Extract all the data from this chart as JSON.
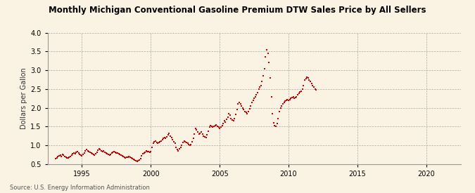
{
  "title": "Monthly Michigan Conventional Gasoline Premium DTW Sales Price by All Sellers",
  "ylabel": "Dollars per Gallon",
  "source": "Source: U.S. Energy Information Administration",
  "background_color": "#FAF3E3",
  "dot_color": "#CC0000",
  "ylim": [
    0.5,
    4.0
  ],
  "yticks": [
    0.5,
    1.0,
    1.5,
    2.0,
    2.5,
    3.0,
    3.5,
    4.0
  ],
  "xlim_start": 1992.5,
  "xlim_end": 2022.5,
  "xticks": [
    1995,
    2000,
    2005,
    2010,
    2015,
    2020
  ],
  "data": [
    [
      1993.08,
      0.65
    ],
    [
      1993.17,
      0.67
    ],
    [
      1993.25,
      0.7
    ],
    [
      1993.33,
      0.72
    ],
    [
      1993.42,
      0.73
    ],
    [
      1993.5,
      0.71
    ],
    [
      1993.58,
      0.75
    ],
    [
      1993.67,
      0.74
    ],
    [
      1993.75,
      0.71
    ],
    [
      1993.83,
      0.68
    ],
    [
      1993.92,
      0.67
    ],
    [
      1994.0,
      0.66
    ],
    [
      1994.08,
      0.68
    ],
    [
      1994.17,
      0.7
    ],
    [
      1994.25,
      0.73
    ],
    [
      1994.33,
      0.78
    ],
    [
      1994.42,
      0.8
    ],
    [
      1994.5,
      0.78
    ],
    [
      1994.58,
      0.82
    ],
    [
      1994.67,
      0.83
    ],
    [
      1994.75,
      0.79
    ],
    [
      1994.83,
      0.76
    ],
    [
      1994.92,
      0.73
    ],
    [
      1995.0,
      0.72
    ],
    [
      1995.08,
      0.75
    ],
    [
      1995.17,
      0.8
    ],
    [
      1995.25,
      0.85
    ],
    [
      1995.33,
      0.88
    ],
    [
      1995.42,
      0.86
    ],
    [
      1995.5,
      0.83
    ],
    [
      1995.58,
      0.82
    ],
    [
      1995.67,
      0.8
    ],
    [
      1995.75,
      0.78
    ],
    [
      1995.83,
      0.76
    ],
    [
      1995.92,
      0.74
    ],
    [
      1996.0,
      0.77
    ],
    [
      1996.08,
      0.82
    ],
    [
      1996.17,
      0.87
    ],
    [
      1996.25,
      0.9
    ],
    [
      1996.33,
      0.88
    ],
    [
      1996.42,
      0.85
    ],
    [
      1996.5,
      0.84
    ],
    [
      1996.58,
      0.85
    ],
    [
      1996.67,
      0.82
    ],
    [
      1996.75,
      0.79
    ],
    [
      1996.83,
      0.77
    ],
    [
      1996.92,
      0.76
    ],
    [
      1997.0,
      0.74
    ],
    [
      1997.08,
      0.76
    ],
    [
      1997.17,
      0.79
    ],
    [
      1997.25,
      0.82
    ],
    [
      1997.33,
      0.84
    ],
    [
      1997.42,
      0.82
    ],
    [
      1997.5,
      0.8
    ],
    [
      1997.58,
      0.79
    ],
    [
      1997.67,
      0.78
    ],
    [
      1997.75,
      0.76
    ],
    [
      1997.83,
      0.74
    ],
    [
      1997.92,
      0.72
    ],
    [
      1998.0,
      0.7
    ],
    [
      1998.08,
      0.68
    ],
    [
      1998.17,
      0.67
    ],
    [
      1998.25,
      0.68
    ],
    [
      1998.33,
      0.69
    ],
    [
      1998.42,
      0.7
    ],
    [
      1998.5,
      0.68
    ],
    [
      1998.58,
      0.67
    ],
    [
      1998.67,
      0.65
    ],
    [
      1998.75,
      0.62
    ],
    [
      1998.83,
      0.6
    ],
    [
      1998.92,
      0.58
    ],
    [
      1999.0,
      0.57
    ],
    [
      1999.08,
      0.58
    ],
    [
      1999.17,
      0.6
    ],
    [
      1999.25,
      0.65
    ],
    [
      1999.33,
      0.72
    ],
    [
      1999.42,
      0.78
    ],
    [
      1999.5,
      0.8
    ],
    [
      1999.58,
      0.82
    ],
    [
      1999.67,
      0.85
    ],
    [
      1999.75,
      0.84
    ],
    [
      1999.83,
      0.83
    ],
    [
      1999.92,
      0.82
    ],
    [
      2000.0,
      0.84
    ],
    [
      2000.08,
      0.95
    ],
    [
      2000.17,
      1.05
    ],
    [
      2000.25,
      1.1
    ],
    [
      2000.33,
      1.12
    ],
    [
      2000.42,
      1.08
    ],
    [
      2000.5,
      1.05
    ],
    [
      2000.58,
      1.08
    ],
    [
      2000.67,
      1.1
    ],
    [
      2000.75,
      1.12
    ],
    [
      2000.83,
      1.15
    ],
    [
      2000.92,
      1.18
    ],
    [
      2001.0,
      1.2
    ],
    [
      2001.08,
      1.18
    ],
    [
      2001.17,
      1.22
    ],
    [
      2001.25,
      1.28
    ],
    [
      2001.33,
      1.32
    ],
    [
      2001.42,
      1.25
    ],
    [
      2001.5,
      1.2
    ],
    [
      2001.58,
      1.15
    ],
    [
      2001.67,
      1.1
    ],
    [
      2001.75,
      1.05
    ],
    [
      2001.83,
      0.95
    ],
    [
      2001.92,
      0.88
    ],
    [
      2002.0,
      0.85
    ],
    [
      2002.08,
      0.9
    ],
    [
      2002.17,
      0.95
    ],
    [
      2002.25,
      1.0
    ],
    [
      2002.33,
      1.08
    ],
    [
      2002.42,
      1.12
    ],
    [
      2002.5,
      1.1
    ],
    [
      2002.58,
      1.08
    ],
    [
      2002.67,
      1.05
    ],
    [
      2002.75,
      1.02
    ],
    [
      2002.83,
      1.0
    ],
    [
      2002.92,
      1.02
    ],
    [
      2003.0,
      1.1
    ],
    [
      2003.08,
      1.18
    ],
    [
      2003.17,
      1.3
    ],
    [
      2003.25,
      1.45
    ],
    [
      2003.33,
      1.42
    ],
    [
      2003.42,
      1.35
    ],
    [
      2003.5,
      1.3
    ],
    [
      2003.58,
      1.32
    ],
    [
      2003.67,
      1.35
    ],
    [
      2003.75,
      1.3
    ],
    [
      2003.83,
      1.25
    ],
    [
      2003.92,
      1.22
    ],
    [
      2004.0,
      1.2
    ],
    [
      2004.08,
      1.28
    ],
    [
      2004.17,
      1.38
    ],
    [
      2004.25,
      1.48
    ],
    [
      2004.33,
      1.52
    ],
    [
      2004.42,
      1.5
    ],
    [
      2004.5,
      1.48
    ],
    [
      2004.58,
      1.5
    ],
    [
      2004.67,
      1.52
    ],
    [
      2004.75,
      1.55
    ],
    [
      2004.83,
      1.5
    ],
    [
      2004.92,
      1.48
    ],
    [
      2005.0,
      1.45
    ],
    [
      2005.08,
      1.48
    ],
    [
      2005.17,
      1.52
    ],
    [
      2005.25,
      1.58
    ],
    [
      2005.33,
      1.65
    ],
    [
      2005.42,
      1.62
    ],
    [
      2005.5,
      1.7
    ],
    [
      2005.58,
      1.75
    ],
    [
      2005.67,
      1.85
    ],
    [
      2005.75,
      1.8
    ],
    [
      2005.83,
      1.72
    ],
    [
      2005.92,
      1.68
    ],
    [
      2006.0,
      1.65
    ],
    [
      2006.08,
      1.72
    ],
    [
      2006.17,
      1.82
    ],
    [
      2006.25,
      1.95
    ],
    [
      2006.33,
      2.1
    ],
    [
      2006.42,
      2.15
    ],
    [
      2006.5,
      2.1
    ],
    [
      2006.58,
      2.05
    ],
    [
      2006.67,
      2.0
    ],
    [
      2006.75,
      1.95
    ],
    [
      2006.83,
      1.9
    ],
    [
      2006.92,
      1.88
    ],
    [
      2007.0,
      1.85
    ],
    [
      2007.08,
      1.9
    ],
    [
      2007.17,
      1.98
    ],
    [
      2007.25,
      2.05
    ],
    [
      2007.33,
      2.15
    ],
    [
      2007.42,
      2.2
    ],
    [
      2007.5,
      2.25
    ],
    [
      2007.58,
      2.3
    ],
    [
      2007.67,
      2.35
    ],
    [
      2007.75,
      2.4
    ],
    [
      2007.83,
      2.5
    ],
    [
      2007.92,
      2.55
    ],
    [
      2008.0,
      2.6
    ],
    [
      2008.08,
      2.7
    ],
    [
      2008.17,
      2.85
    ],
    [
      2008.25,
      3.05
    ],
    [
      2008.33,
      3.35
    ],
    [
      2008.42,
      3.55
    ],
    [
      2008.5,
      3.45
    ],
    [
      2008.58,
      3.2
    ],
    [
      2008.67,
      2.8
    ],
    [
      2008.75,
      2.3
    ],
    [
      2008.83,
      1.85
    ],
    [
      2008.92,
      1.6
    ],
    [
      2009.0,
      1.52
    ],
    [
      2009.08,
      1.5
    ],
    [
      2009.17,
      1.58
    ],
    [
      2009.25,
      1.72
    ],
    [
      2009.33,
      1.9
    ],
    [
      2009.42,
      2.0
    ],
    [
      2009.5,
      2.05
    ],
    [
      2009.58,
      2.1
    ],
    [
      2009.67,
      2.15
    ],
    [
      2009.75,
      2.18
    ],
    [
      2009.83,
      2.2
    ],
    [
      2009.92,
      2.22
    ],
    [
      2010.0,
      2.2
    ],
    [
      2010.08,
      2.22
    ],
    [
      2010.17,
      2.25
    ],
    [
      2010.25,
      2.28
    ],
    [
      2010.33,
      2.3
    ],
    [
      2010.42,
      2.25
    ],
    [
      2010.5,
      2.28
    ],
    [
      2010.58,
      2.3
    ],
    [
      2010.67,
      2.35
    ],
    [
      2010.75,
      2.38
    ],
    [
      2010.83,
      2.42
    ],
    [
      2010.92,
      2.45
    ],
    [
      2011.0,
      2.5
    ],
    [
      2011.08,
      2.6
    ],
    [
      2011.17,
      2.75
    ],
    [
      2011.25,
      2.78
    ],
    [
      2011.33,
      2.82
    ],
    [
      2011.42,
      2.8
    ],
    [
      2011.5,
      2.75
    ],
    [
      2011.58,
      2.7
    ],
    [
      2011.67,
      2.65
    ],
    [
      2011.75,
      2.6
    ],
    [
      2011.83,
      2.55
    ],
    [
      2011.92,
      2.5
    ],
    [
      2012.0,
      2.48
    ]
  ]
}
